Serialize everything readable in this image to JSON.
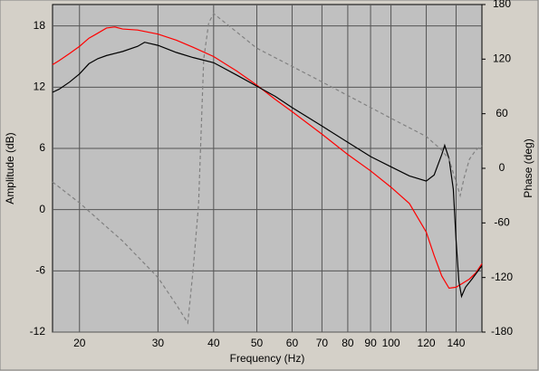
{
  "chart_data": {
    "type": "line",
    "x_label": "Frequency (Hz)",
    "y_label": "Amplitude (dB)",
    "y2_label": "Phase (deg)",
    "log_x": true,
    "grid": true,
    "xlim": [
      17.4,
      160
    ],
    "xticks": [
      20,
      30,
      40,
      50,
      60,
      70,
      80,
      90,
      100,
      120,
      140
    ],
    "ylim": [
      -12,
      20.1
    ],
    "yticks": [
      18,
      12,
      6,
      0,
      -6,
      -12
    ],
    "y2lim": [
      -180,
      180
    ],
    "y2ticks": [
      180,
      120,
      60,
      0,
      -60,
      -120,
      -180
    ],
    "series": [
      {
        "color": "#ff0000",
        "dash": false,
        "x": [
          17.4,
          18,
          19,
          20,
          21,
          22,
          23,
          24,
          25,
          27,
          30,
          33,
          36,
          40,
          45,
          50,
          55,
          60,
          70,
          80,
          90,
          100,
          110,
          120,
          125,
          130,
          135,
          140,
          145,
          150,
          155,
          160
        ],
        "values": [
          14.2,
          14.6,
          15.3,
          16,
          16.8,
          17.3,
          17.8,
          17.9,
          17.7,
          17.6,
          17.2,
          16.6,
          15.9,
          15,
          13.6,
          12.2,
          10.8,
          9.6,
          7.4,
          5.4,
          3.8,
          2.2,
          0.6,
          -2.2,
          -4.5,
          -6.5,
          -7.7,
          -7.6,
          -7.2,
          -6.8,
          -6.2,
          -5.3
        ]
      },
      {
        "color": "#000000",
        "dash": false,
        "x": [
          17.4,
          18,
          19,
          20,
          21,
          22,
          23,
          25,
          27,
          28,
          30,
          33,
          36,
          40,
          45,
          50,
          55,
          60,
          70,
          80,
          90,
          100,
          110,
          120,
          125,
          130,
          132,
          135,
          138,
          140,
          142,
          144,
          147,
          152,
          160
        ],
        "values": [
          11.5,
          11.8,
          12.5,
          13.3,
          14.3,
          14.8,
          15.1,
          15.5,
          16,
          16.4,
          16.1,
          15.4,
          14.9,
          14.4,
          13.2,
          12.1,
          11.1,
          10,
          8.2,
          6.6,
          5.2,
          4.2,
          3.3,
          2.8,
          3.4,
          5.4,
          6.3,
          5,
          2,
          -3,
          -7,
          -8.5,
          -7.6,
          -6.8,
          -5.5
        ]
      },
      {
        "color": "#808080",
        "dash": true,
        "axis": "y2",
        "x": [
          17.4,
          20,
          25,
          30,
          33,
          35,
          36,
          37,
          38,
          39,
          40,
          45,
          50,
          60,
          70,
          80,
          100,
          120,
          130,
          135,
          140,
          143,
          146,
          150,
          155,
          160
        ],
        "values": [
          -15,
          -38,
          -80,
          -120,
          -150,
          -170,
          -110,
          -40,
          120,
          160,
          170,
          150,
          132,
          112,
          95,
          80,
          55,
          35,
          20,
          10,
          -15,
          -30,
          -10,
          10,
          20,
          25
        ]
      }
    ]
  }
}
